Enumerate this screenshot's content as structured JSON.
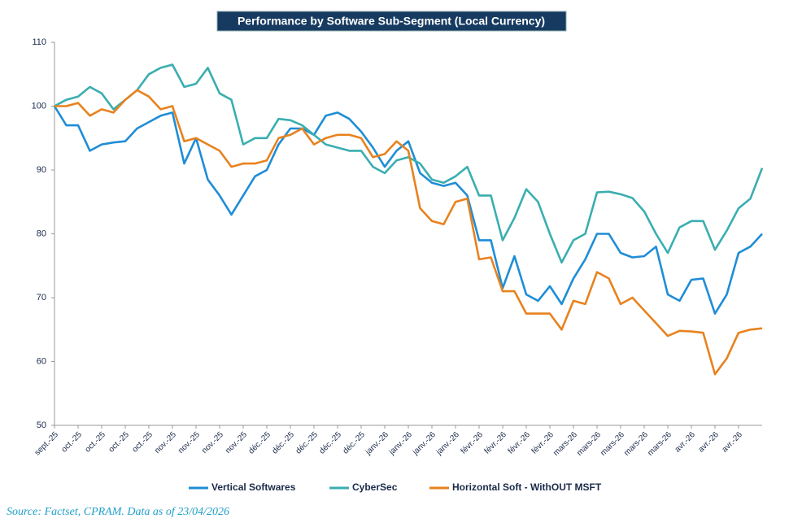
{
  "chart_data": {
    "type": "line",
    "title": "Performance by Software Sub-Segment (Local Currency)",
    "source": "Source: Factset, CPRAM. Data as of 23/04/2026",
    "categories": [
      "sept.-25",
      null,
      "oct.-25",
      null,
      "oct.-25",
      null,
      "oct.-25",
      null,
      "oct.-25",
      null,
      "nov.-25",
      null,
      "nov.-25",
      null,
      "nov.-25",
      null,
      "nov.-25",
      null,
      "déc.-25",
      null,
      "déc.-25",
      null,
      "déc.-25",
      null,
      "déc.-25",
      null,
      "déc.-25",
      null,
      "janv.-26",
      null,
      "janv.-26",
      null,
      "janv.-26",
      null,
      "janv.-26",
      null,
      "févr.-26",
      null,
      "févr.-26",
      null,
      "févr.-26",
      null,
      "févr.-26",
      null,
      "mars-26",
      null,
      "mars-26",
      null,
      "mars-26",
      null,
      "mars-26",
      null,
      "mars-26",
      null,
      "avr.-26",
      null,
      "avr.-26",
      null,
      "avr.-26",
      null,
      null
    ],
    "series": [
      {
        "name": "Vertical Softwares",
        "color": "#1f8dd6",
        "values": [
          100,
          97,
          97,
          93,
          94,
          94.3,
          94.5,
          96.5,
          97.5,
          98.5,
          99,
          91,
          95,
          88.5,
          86,
          83,
          86,
          89,
          90,
          94,
          96.5,
          96.5,
          95.5,
          98.5,
          99,
          98,
          96,
          93.5,
          90.5,
          93,
          94.5,
          89.5,
          88,
          87.5,
          88,
          86,
          79,
          79,
          71.5,
          76.5,
          70.5,
          69.5,
          71.8,
          69,
          73,
          76,
          80,
          80,
          77,
          76.3,
          76.5,
          78,
          70.5,
          69.5,
          72.8,
          73,
          67.5,
          70.5,
          77,
          78,
          80
        ]
      },
      {
        "name": "CyberSec",
        "color": "#3aaeb0",
        "values": [
          100,
          101,
          101.5,
          103,
          102,
          99.5,
          101,
          102.5,
          105,
          106,
          106.5,
          103,
          103.5,
          106,
          102,
          101,
          94,
          95,
          95,
          98,
          97.8,
          97,
          95.5,
          94,
          93.5,
          93,
          93,
          90.5,
          89.5,
          91.5,
          92,
          91,
          88.5,
          88,
          89,
          90.5,
          86,
          86,
          79,
          82.5,
          87,
          85,
          80,
          75.5,
          79,
          80,
          86.5,
          86.6,
          86.2,
          85.6,
          83.5,
          80,
          77,
          81,
          82,
          82,
          77.5,
          80.5,
          84,
          85.5,
          90.3
        ]
      },
      {
        "name": "Horizontal Soft - WithOUT MSFT",
        "color": "#e8821e",
        "values": [
          100,
          100,
          100.5,
          98.5,
          99.5,
          99,
          101,
          102.5,
          101.5,
          99.5,
          100,
          94.5,
          95,
          94,
          93,
          90.5,
          91,
          91,
          91.5,
          95,
          95.5,
          96.5,
          94,
          95,
          95.5,
          95.5,
          95,
          92,
          92.5,
          94.5,
          93,
          84,
          82,
          81.5,
          85,
          85.5,
          76,
          76.3,
          71,
          71,
          67.5,
          67.5,
          67.5,
          65,
          69.5,
          69,
          74,
          73,
          69,
          70,
          68,
          66,
          64,
          64.8,
          64.7,
          64.5,
          58,
          60.5,
          64.5,
          65,
          65.2
        ]
      }
    ],
    "ylim": [
      50,
      110
    ],
    "yticks": [
      50,
      60,
      70,
      80,
      90,
      100,
      110
    ],
    "grid": false,
    "legend": "bottom"
  }
}
